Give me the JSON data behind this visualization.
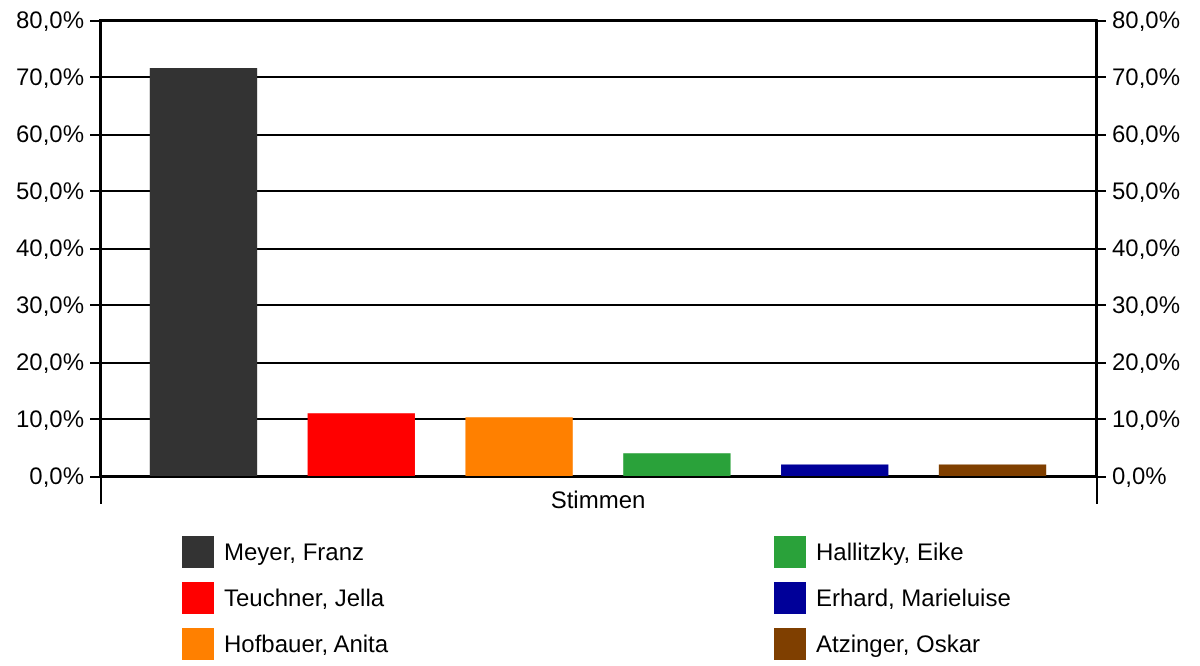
{
  "chart_data": {
    "type": "bar",
    "categories": [
      "Stimmen"
    ],
    "series": [
      {
        "name": "Meyer, Franz",
        "color": "#333333",
        "values": [
          71.6
        ]
      },
      {
        "name": "Teuchner, Jella",
        "color": "#ff0000",
        "values": [
          11.0
        ]
      },
      {
        "name": "Hofbauer, Anita",
        "color": "#ff8000",
        "values": [
          10.3
        ]
      },
      {
        "name": "Hallitzky, Eike",
        "color": "#2aa23a",
        "values": [
          4.0
        ]
      },
      {
        "name": "Erhard, Marieluise",
        "color": "#000099",
        "values": [
          2.0
        ]
      },
      {
        "name": "Atzinger, Oskar",
        "color": "#7f3f00",
        "values": [
          2.0
        ]
      }
    ],
    "ylim": [
      0,
      80
    ],
    "yticks": [
      {
        "value": 0,
        "label": "0,0%"
      },
      {
        "value": 10,
        "label": "10,0%"
      },
      {
        "value": 20,
        "label": "20,0%"
      },
      {
        "value": 30,
        "label": "30,0%"
      },
      {
        "value": 40,
        "label": "40,0%"
      },
      {
        "value": 50,
        "label": "50,0%"
      },
      {
        "value": 60,
        "label": "60,0%"
      },
      {
        "value": 70,
        "label": "70,0%"
      },
      {
        "value": 80,
        "label": "80,0%"
      }
    ],
    "grid": "y",
    "legend": "bottom"
  }
}
